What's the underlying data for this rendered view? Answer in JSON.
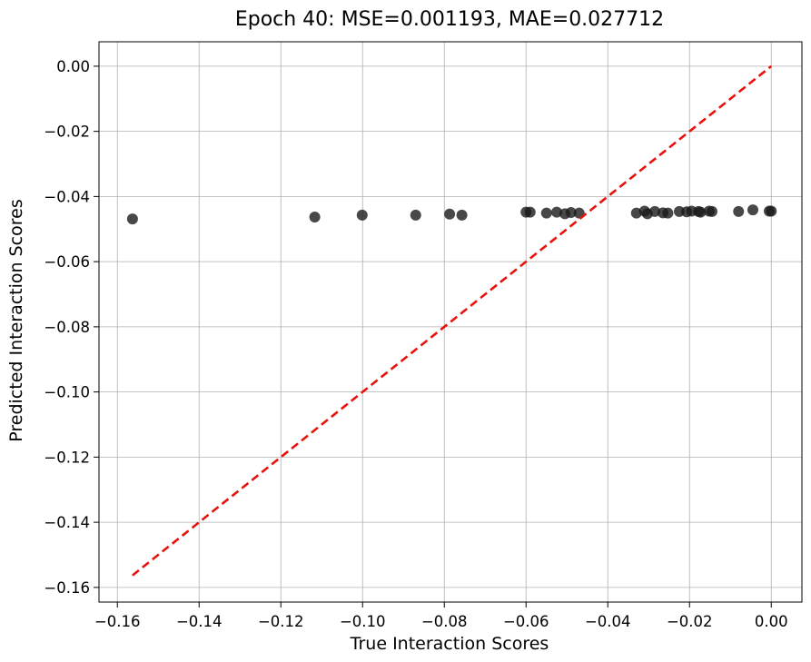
{
  "chart_data": {
    "type": "scatter",
    "title": "Epoch 40: MSE=0.001193, MAE=0.027712",
    "xlabel": "True Interaction Scores",
    "ylabel": "Predicted Interaction Scores",
    "xlim": [
      -0.1645,
      0.0075
    ],
    "ylim": [
      -0.1645,
      0.0075
    ],
    "grid": true,
    "x_ticks": [
      "−0.16",
      "−0.14",
      "−0.12",
      "−0.10",
      "−0.08",
      "−0.06",
      "−0.04",
      "−0.02",
      "0.00"
    ],
    "x_tick_values": [
      -0.16,
      -0.14,
      -0.12,
      -0.1,
      -0.08,
      -0.06,
      -0.04,
      -0.02,
      0.0
    ],
    "y_ticks": [
      "−0.16",
      "−0.14",
      "−0.12",
      "−0.10",
      "−0.08",
      "−0.06",
      "−0.04",
      "−0.02",
      "0.00"
    ],
    "y_tick_values": [
      -0.16,
      -0.14,
      -0.12,
      -0.1,
      -0.08,
      -0.06,
      -0.04,
      -0.02,
      0.0
    ],
    "series": [
      {
        "kind": "points",
        "color": "#1a1a1a",
        "x": [
          -0.1563,
          -0.1117,
          -0.1001,
          -0.087,
          -0.0787,
          -0.0757,
          -0.06,
          -0.059,
          -0.055,
          -0.0525,
          -0.0505,
          -0.049,
          -0.047,
          -0.033,
          -0.031,
          -0.0303,
          -0.0285,
          -0.0265,
          -0.0253,
          -0.0225,
          -0.0207,
          -0.0195,
          -0.0178,
          -0.0173,
          -0.0152,
          -0.0145,
          -0.008,
          -0.0045,
          -0.0005,
          0.0
        ],
        "y": [
          -0.0469,
          -0.0463,
          -0.0457,
          -0.0457,
          -0.0454,
          -0.0457,
          -0.0448,
          -0.0448,
          -0.0451,
          -0.0448,
          -0.0453,
          -0.0449,
          -0.0451,
          -0.0451,
          -0.0445,
          -0.0453,
          -0.0446,
          -0.045,
          -0.0451,
          -0.0446,
          -0.0447,
          -0.0445,
          -0.0446,
          -0.0448,
          -0.0445,
          -0.0446,
          -0.0446,
          -0.0441,
          -0.0445,
          -0.0445
        ]
      },
      {
        "kind": "dashed-line",
        "color": "#e8120c",
        "x": [
          -0.1563,
          0.0
        ],
        "y": [
          -0.1563,
          0.0
        ]
      }
    ]
  }
}
